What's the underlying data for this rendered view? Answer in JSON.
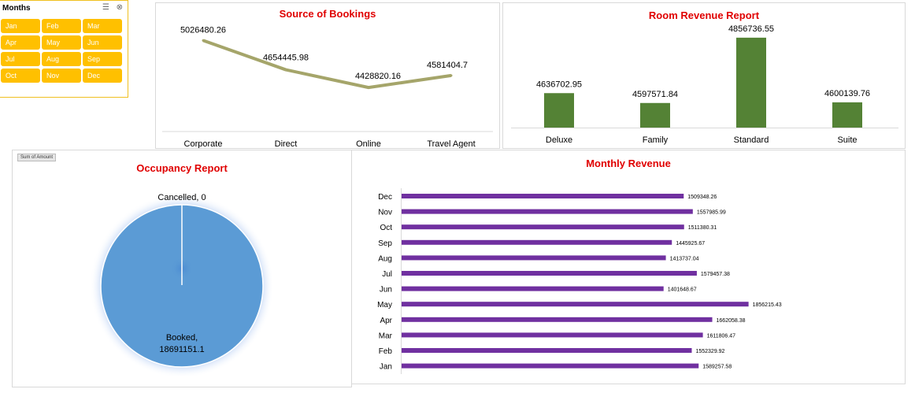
{
  "slicer": {
    "title": "Months",
    "months": [
      "Jan",
      "Feb",
      "Mar",
      "Apr",
      "May",
      "Jun",
      "Jul",
      "Aug",
      "Sep",
      "Oct",
      "Nov",
      "Dec"
    ]
  },
  "sum_label": "Sum of Amount",
  "chart_data": [
    {
      "type": "line",
      "title": "Source of Bookings",
      "categories": [
        "Corporate",
        "Direct",
        "Online",
        "Travel Agent"
      ],
      "values": [
        5026480.26,
        4654445.98,
        4428820.16,
        4581404.7
      ],
      "labels": [
        "5026480.26",
        "4654445.98",
        "4428820.16",
        "4581404.7"
      ],
      "ylim": [
        4300000,
        5100000
      ],
      "color": "#a5a56a"
    },
    {
      "type": "bar",
      "title": "Room Revenue Report",
      "categories": [
        "Deluxe",
        "Family",
        "Standard",
        "Suite"
      ],
      "values": [
        4636702.95,
        4597571.84,
        4856736.55,
        4600139.76
      ],
      "labels": [
        "4636702.95",
        "4597571.84",
        "4856736.55",
        "4600139.76"
      ],
      "ylim": [
        4500000,
        4900000
      ],
      "color": "#548235"
    },
    {
      "type": "pie",
      "title": "Occupancy Report",
      "slices": [
        {
          "label": "Cancelled",
          "value": 0,
          "text": "Cancelled, 0"
        },
        {
          "label": "Booked",
          "value": 18691151.1,
          "text": "Booked,\n18691151.1"
        }
      ],
      "color": "#5b9bd5"
    },
    {
      "type": "bar",
      "orientation": "horizontal",
      "title": "Monthly Revenue",
      "categories": [
        "Dec",
        "Nov",
        "Oct",
        "Sep",
        "Aug",
        "Jul",
        "Jun",
        "May",
        "Apr",
        "Mar",
        "Feb",
        "Jan"
      ],
      "values": [
        1509348.26,
        1557985.99,
        1511380.31,
        1445925.67,
        1413737.04,
        1579457.38,
        1401648.67,
        1856215.43,
        1662058.38,
        1611806.47,
        1552329.92,
        1589257.58
      ],
      "labels": [
        "1509348.26",
        "1557985.99",
        "1511380.31",
        "1445925.67",
        "1413737.04",
        "1579457.38",
        "1401648.67",
        "1856215.43",
        "1662058.38",
        "1611806.47",
        "1552329.92",
        "1589257.58"
      ],
      "xlim": [
        0,
        1980000
      ],
      "color": "#7030a0"
    }
  ]
}
